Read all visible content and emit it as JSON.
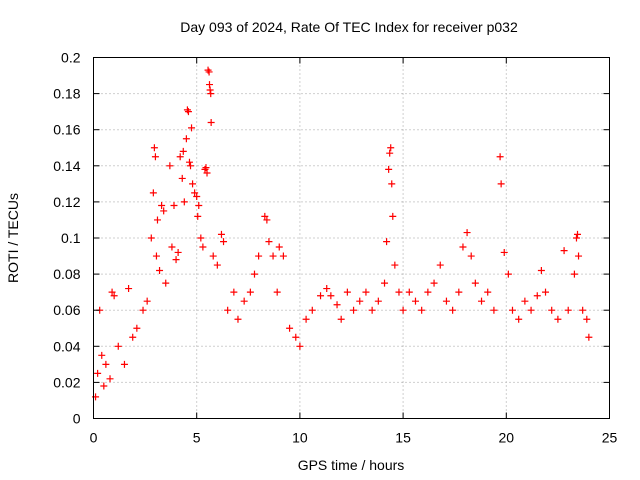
{
  "chart_data": {
    "type": "scatter",
    "title": "Day 093 of 2024, Rate Of TEC Index for receiver p032",
    "xlabel": "GPS time / hours",
    "ylabel": "ROTI / TECUs",
    "xlim": [
      0,
      25
    ],
    "ylim": [
      0,
      0.2
    ],
    "x_ticks": [
      0,
      5,
      10,
      15,
      20,
      25
    ],
    "y_ticks": [
      0,
      0.02,
      0.04,
      0.06,
      0.08,
      0.1,
      0.12,
      0.14,
      0.16,
      0.18,
      0.2
    ],
    "x_tick_labels": [
      "0",
      "5",
      "10",
      "15",
      "20",
      "25"
    ],
    "y_tick_labels": [
      "0",
      "0.02",
      "0.04",
      "0.06",
      "0.08",
      "0.1",
      "0.12",
      "0.14",
      "0.16",
      "0.18",
      "0.2"
    ],
    "grid": true,
    "marker": "+",
    "series_color": "#ff0000",
    "series": [
      {
        "points": [
          [
            0.1,
            0.012
          ],
          [
            0.2,
            0.025
          ],
          [
            0.3,
            0.06
          ],
          [
            0.4,
            0.035
          ],
          [
            0.5,
            0.018
          ],
          [
            0.6,
            0.03
          ],
          [
            0.8,
            0.022
          ],
          [
            0.9,
            0.07
          ],
          [
            1.0,
            0.068
          ],
          [
            1.2,
            0.04
          ],
          [
            1.5,
            0.03
          ],
          [
            1.7,
            0.072
          ],
          [
            1.9,
            0.045
          ],
          [
            2.1,
            0.05
          ],
          [
            2.4,
            0.06
          ],
          [
            2.6,
            0.065
          ],
          [
            2.8,
            0.1
          ],
          [
            2.9,
            0.125
          ],
          [
            2.95,
            0.15
          ],
          [
            3.0,
            0.145
          ],
          [
            3.05,
            0.09
          ],
          [
            3.1,
            0.11
          ],
          [
            3.2,
            0.082
          ],
          [
            3.3,
            0.118
          ],
          [
            3.4,
            0.115
          ],
          [
            3.5,
            0.075
          ],
          [
            3.7,
            0.14
          ],
          [
            3.8,
            0.095
          ],
          [
            3.9,
            0.118
          ],
          [
            4.0,
            0.088
          ],
          [
            4.1,
            0.092
          ],
          [
            4.2,
            0.145
          ],
          [
            4.3,
            0.133
          ],
          [
            4.35,
            0.148
          ],
          [
            4.4,
            0.12
          ],
          [
            4.5,
            0.155
          ],
          [
            4.55,
            0.171
          ],
          [
            4.6,
            0.17
          ],
          [
            4.65,
            0.142
          ],
          [
            4.7,
            0.14
          ],
          [
            4.75,
            0.161
          ],
          [
            4.8,
            0.13
          ],
          [
            4.9,
            0.125
          ],
          [
            5.0,
            0.123
          ],
          [
            5.05,
            0.112
          ],
          [
            5.1,
            0.118
          ],
          [
            5.2,
            0.1
          ],
          [
            5.3,
            0.095
          ],
          [
            5.4,
            0.138
          ],
          [
            5.45,
            0.139
          ],
          [
            5.5,
            0.136
          ],
          [
            5.55,
            0.193
          ],
          [
            5.6,
            0.192
          ],
          [
            5.62,
            0.185
          ],
          [
            5.65,
            0.182
          ],
          [
            5.68,
            0.18
          ],
          [
            5.7,
            0.164
          ],
          [
            5.8,
            0.09
          ],
          [
            6.0,
            0.085
          ],
          [
            6.2,
            0.102
          ],
          [
            6.3,
            0.098
          ],
          [
            6.5,
            0.06
          ],
          [
            6.8,
            0.07
          ],
          [
            7.0,
            0.055
          ],
          [
            7.3,
            0.065
          ],
          [
            7.6,
            0.07
          ],
          [
            7.8,
            0.08
          ],
          [
            8.0,
            0.09
          ],
          [
            8.3,
            0.112
          ],
          [
            8.4,
            0.11
          ],
          [
            8.5,
            0.098
          ],
          [
            8.7,
            0.09
          ],
          [
            8.9,
            0.07
          ],
          [
            9.0,
            0.095
          ],
          [
            9.2,
            0.09
          ],
          [
            9.5,
            0.05
          ],
          [
            9.8,
            0.045
          ],
          [
            10.0,
            0.04
          ],
          [
            10.3,
            0.055
          ],
          [
            10.6,
            0.06
          ],
          [
            11.0,
            0.068
          ],
          [
            11.3,
            0.072
          ],
          [
            11.5,
            0.068
          ],
          [
            11.8,
            0.063
          ],
          [
            12.0,
            0.055
          ],
          [
            12.3,
            0.07
          ],
          [
            12.6,
            0.06
          ],
          [
            12.9,
            0.065
          ],
          [
            13.2,
            0.07
          ],
          [
            13.5,
            0.06
          ],
          [
            13.8,
            0.065
          ],
          [
            14.1,
            0.075
          ],
          [
            14.2,
            0.098
          ],
          [
            14.3,
            0.138
          ],
          [
            14.35,
            0.147
          ],
          [
            14.4,
            0.15
          ],
          [
            14.45,
            0.13
          ],
          [
            14.5,
            0.112
          ],
          [
            14.6,
            0.085
          ],
          [
            14.8,
            0.07
          ],
          [
            15.0,
            0.06
          ],
          [
            15.3,
            0.07
          ],
          [
            15.6,
            0.065
          ],
          [
            15.9,
            0.06
          ],
          [
            16.2,
            0.07
          ],
          [
            16.5,
            0.075
          ],
          [
            16.8,
            0.085
          ],
          [
            17.1,
            0.065
          ],
          [
            17.4,
            0.06
          ],
          [
            17.7,
            0.07
          ],
          [
            17.9,
            0.095
          ],
          [
            18.1,
            0.103
          ],
          [
            18.3,
            0.09
          ],
          [
            18.5,
            0.075
          ],
          [
            18.8,
            0.065
          ],
          [
            19.1,
            0.07
          ],
          [
            19.4,
            0.06
          ],
          [
            19.7,
            0.145
          ],
          [
            19.75,
            0.13
          ],
          [
            19.9,
            0.092
          ],
          [
            20.1,
            0.08
          ],
          [
            20.3,
            0.06
          ],
          [
            20.6,
            0.055
          ],
          [
            20.9,
            0.065
          ],
          [
            21.2,
            0.06
          ],
          [
            21.5,
            0.068
          ],
          [
            21.7,
            0.082
          ],
          [
            21.9,
            0.07
          ],
          [
            22.2,
            0.06
          ],
          [
            22.5,
            0.055
          ],
          [
            22.8,
            0.093
          ],
          [
            23.0,
            0.06
          ],
          [
            23.3,
            0.08
          ],
          [
            23.4,
            0.1
          ],
          [
            23.45,
            0.102
          ],
          [
            23.5,
            0.09
          ],
          [
            23.7,
            0.06
          ],
          [
            23.9,
            0.055
          ],
          [
            24.0,
            0.045
          ]
        ]
      }
    ]
  }
}
